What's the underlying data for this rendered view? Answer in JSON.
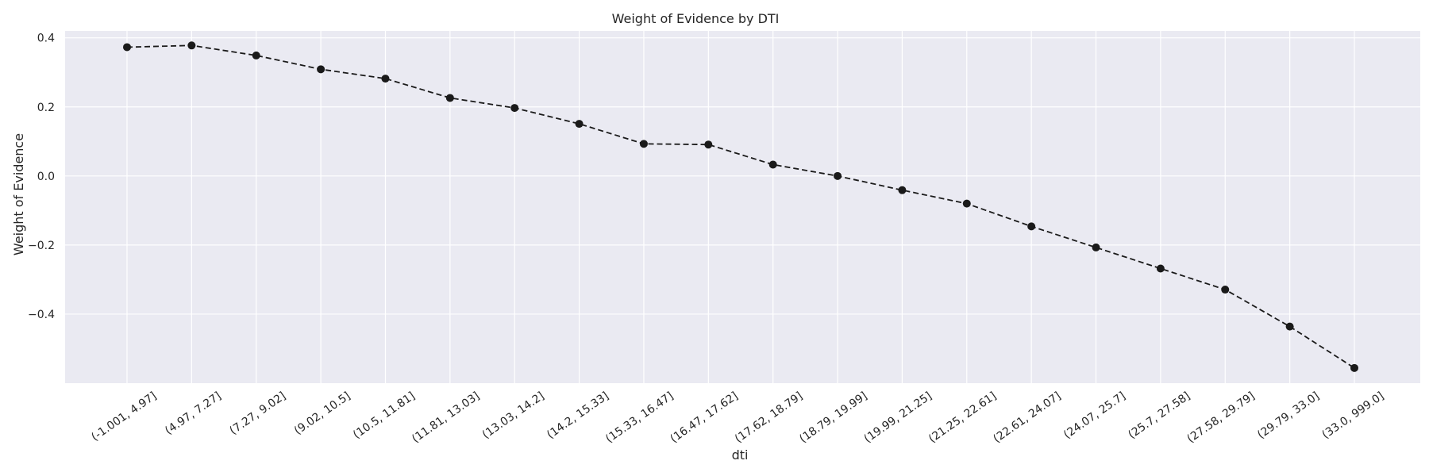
{
  "chart_data": {
    "type": "line",
    "title": "Weight of Evidence by DTI",
    "xlabel": "dti",
    "ylabel": "Weight of Evidence",
    "categories": [
      "(-1.001, 4.97]",
      "(4.97, 7.27]",
      "(7.27, 9.02]",
      "(9.02, 10.5]",
      "(10.5, 11.81]",
      "(11.81, 13.03]",
      "(13.03, 14.2]",
      "(14.2, 15.33]",
      "(15.33, 16.47]",
      "(16.47, 17.62]",
      "(17.62, 18.79]",
      "(18.79, 19.99]",
      "(19.99, 21.25]",
      "(21.25, 22.61]",
      "(22.61, 24.07]",
      "(24.07, 25.7]",
      "(25.7, 27.58]",
      "(27.58, 29.79]",
      "(29.79, 33.0]",
      "(33.0, 999.0]"
    ],
    "series": [
      {
        "values": [
          0.373,
          0.378,
          0.349,
          0.309,
          0.282,
          0.226,
          0.197,
          0.151,
          0.093,
          0.091,
          0.033,
          0.0,
          -0.041,
          -0.08,
          -0.146,
          -0.207,
          -0.268,
          -0.329,
          -0.436,
          -0.556
        ]
      }
    ],
    "yticks": [
      -0.4,
      -0.2,
      0.0,
      0.2,
      0.4
    ],
    "ytick_labels": [
      "−0.4",
      "−0.2",
      "0.0",
      "0.2",
      "0.4"
    ],
    "ylim": [
      -0.6,
      0.42
    ],
    "grid": true,
    "line_style": "dashed",
    "marker": "circle",
    "colors": {
      "background": "#eaeaf2",
      "grid": "#ffffff",
      "line": "#1a1a1a",
      "marker": "#1a1a1a"
    }
  }
}
